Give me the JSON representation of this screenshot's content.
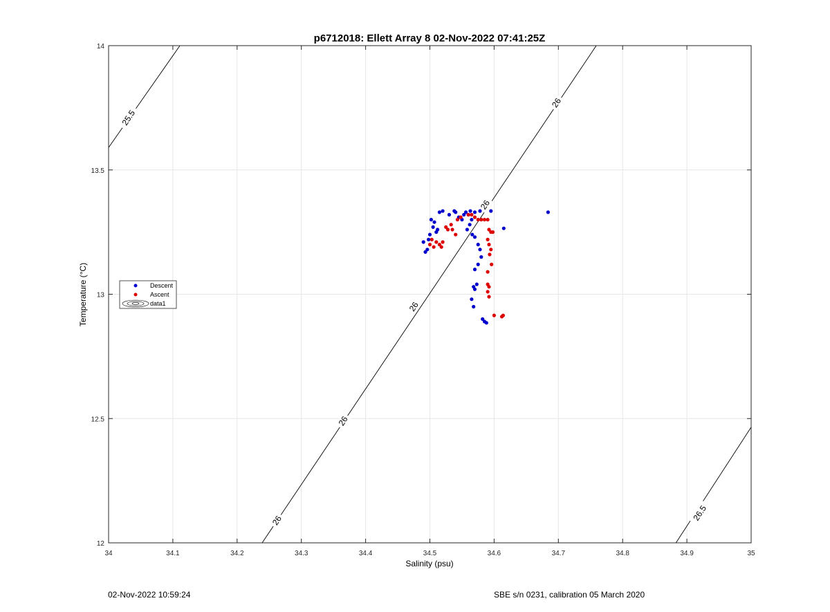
{
  "footer": {
    "timestamp": "02-Nov-2022 10:59:24",
    "instrument": "SBE s/n 0231, calibration 05 March 2020"
  },
  "chart_data": {
    "type": "scatter",
    "title": "p6712018: Ellett Array 8 02-Nov-2022 07:41:25Z",
    "xlabel": "Salinity (psu)",
    "ylabel": "Temperature (°C)",
    "xlim": [
      34,
      35
    ],
    "ylim": [
      12,
      14
    ],
    "xticks": [
      "34",
      "34.1",
      "34.2",
      "34.3",
      "34.4",
      "34.5",
      "34.6",
      "34.7",
      "34.8",
      "34.9",
      "35"
    ],
    "yticks": [
      "12",
      "12.5",
      "13",
      "13.5",
      "14"
    ],
    "grid": true,
    "legend_position": "left",
    "colors": {
      "descent": "#0000cc",
      "ascent": "#dd0000",
      "contour": "#000000",
      "grid": "#e6e6e6"
    },
    "series": [
      {
        "name": "Descent",
        "marker": "dot",
        "points": [
          [
            34.49,
            13.21
          ],
          [
            34.493,
            13.17
          ],
          [
            34.496,
            13.18
          ],
          [
            34.498,
            13.22
          ],
          [
            34.5,
            13.24
          ],
          [
            34.502,
            13.3
          ],
          [
            34.505,
            13.27
          ],
          [
            34.507,
            13.29
          ],
          [
            34.51,
            13.25
          ],
          [
            34.512,
            13.26
          ],
          [
            34.515,
            13.33
          ],
          [
            34.52,
            13.335
          ],
          [
            34.53,
            13.32
          ],
          [
            34.538,
            13.335
          ],
          [
            34.54,
            13.33
          ],
          [
            34.545,
            13.31
          ],
          [
            34.55,
            13.3
          ],
          [
            34.553,
            13.32
          ],
          [
            34.556,
            13.33
          ],
          [
            34.56,
            13.32
          ],
          [
            34.563,
            13.335
          ],
          [
            34.565,
            13.3
          ],
          [
            34.57,
            13.33
          ],
          [
            34.578,
            13.335
          ],
          [
            34.595,
            13.335
          ],
          [
            34.558,
            13.26
          ],
          [
            34.562,
            13.28
          ],
          [
            34.566,
            13.24
          ],
          [
            34.57,
            13.23
          ],
          [
            34.575,
            13.2
          ],
          [
            34.578,
            13.18
          ],
          [
            34.58,
            13.15
          ],
          [
            34.575,
            13.12
          ],
          [
            34.57,
            13.1
          ],
          [
            34.573,
            13.04
          ],
          [
            34.568,
            13.03
          ],
          [
            34.57,
            13.02
          ],
          [
            34.565,
            12.98
          ],
          [
            34.568,
            12.95
          ],
          [
            34.582,
            12.9
          ],
          [
            34.585,
            12.89
          ],
          [
            34.588,
            12.885
          ],
          [
            34.615,
            13.265
          ],
          [
            34.684,
            13.33
          ]
        ]
      },
      {
        "name": "Ascent",
        "marker": "dot",
        "points": [
          [
            34.5,
            13.2
          ],
          [
            34.503,
            13.22
          ],
          [
            34.506,
            13.19
          ],
          [
            34.51,
            13.21
          ],
          [
            34.515,
            13.2
          ],
          [
            34.518,
            13.19
          ],
          [
            34.52,
            13.21
          ],
          [
            34.525,
            13.27
          ],
          [
            34.528,
            13.26
          ],
          [
            34.533,
            13.28
          ],
          [
            34.535,
            13.26
          ],
          [
            34.54,
            13.24
          ],
          [
            34.543,
            13.3
          ],
          [
            34.548,
            13.31
          ],
          [
            34.56,
            13.32
          ],
          [
            34.565,
            13.32
          ],
          [
            34.57,
            13.31
          ],
          [
            34.575,
            13.3
          ],
          [
            34.58,
            13.3
          ],
          [
            34.585,
            13.3
          ],
          [
            34.59,
            13.3
          ],
          [
            34.592,
            13.26
          ],
          [
            34.595,
            13.25
          ],
          [
            34.598,
            13.25
          ],
          [
            34.59,
            13.22
          ],
          [
            34.592,
            13.2
          ],
          [
            34.595,
            13.18
          ],
          [
            34.593,
            13.16
          ],
          [
            34.596,
            13.12
          ],
          [
            34.59,
            13.09
          ],
          [
            34.59,
            13.04
          ],
          [
            34.592,
            13.03
          ],
          [
            34.59,
            13.01
          ],
          [
            34.592,
            12.99
          ],
          [
            34.6,
            12.915
          ],
          [
            34.612,
            12.91
          ],
          [
            34.614,
            12.915
          ]
        ]
      },
      {
        "name": "data1",
        "marker": "contour"
      }
    ],
    "contours": [
      {
        "label": "25.5",
        "points": [
          [
            34.0,
            13.59
          ],
          [
            34.111,
            14.0
          ]
        ]
      },
      {
        "label": "26",
        "points": [
          [
            34.239,
            12.0
          ],
          [
            34.759,
            14.0
          ]
        ]
      },
      {
        "label": "26.5",
        "points": [
          [
            34.883,
            12.0
          ],
          [
            35.0,
            12.465
          ]
        ]
      }
    ],
    "contour_labels": [
      {
        "text": "25.5",
        "x": 34.031,
        "y": 13.71
      },
      {
        "text": "26",
        "x": 34.697,
        "y": 13.77
      },
      {
        "text": "26",
        "x": 34.586,
        "y": 13.36
      },
      {
        "text": "26",
        "x": 34.475,
        "y": 12.95
      },
      {
        "text": "26",
        "x": 34.365,
        "y": 12.49
      },
      {
        "text": "26",
        "x": 34.262,
        "y": 12.09
      },
      {
        "text": "26.5",
        "x": 34.92,
        "y": 12.12
      }
    ]
  }
}
